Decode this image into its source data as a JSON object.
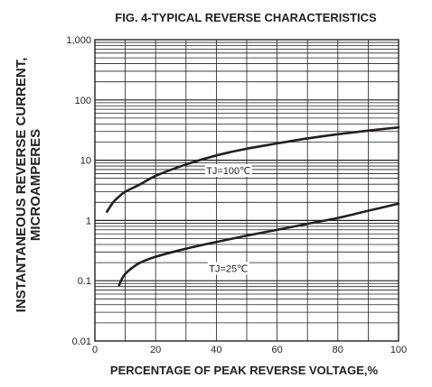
{
  "chart_data": {
    "type": "line",
    "title": "FIG. 4-TYPICAL REVERSE CHARACTERISTICS",
    "xlabel": "PERCENTAGE OF PEAK REVERSE VOLTAGE,%",
    "ylabel_line1": "INSTANTANEOUS REVERSE CURRENT,",
    "ylabel_line2": "MICROAMPERES",
    "xlim": [
      0,
      100
    ],
    "ylim": [
      0.01,
      1000
    ],
    "y_scale": "log",
    "grid": true,
    "x_ticks": [
      "0",
      "20",
      "40",
      "60",
      "80",
      "100"
    ],
    "x_tick_values": [
      0,
      20,
      40,
      60,
      80,
      100
    ],
    "y_ticks": [
      "0.01",
      "0.1",
      "1",
      "10",
      "100",
      "1,000"
    ],
    "y_tick_values": [
      0.01,
      0.1,
      1,
      10,
      100,
      1000
    ],
    "series": [
      {
        "name": "TJ=100℃",
        "x": [
          4,
          6,
          8,
          10,
          15,
          20,
          30,
          40,
          50,
          60,
          70,
          80,
          90,
          100
        ],
        "y": [
          1.4,
          2.0,
          2.5,
          3.0,
          4.0,
          5.5,
          8.5,
          12,
          15.5,
          19,
          23,
          27,
          31,
          35
        ]
      },
      {
        "name": "TJ=25℃",
        "x": [
          8,
          9,
          10,
          12,
          15,
          20,
          30,
          40,
          50,
          60,
          70,
          80,
          90,
          100
        ],
        "y": [
          0.085,
          0.11,
          0.13,
          0.16,
          0.2,
          0.25,
          0.34,
          0.44,
          0.56,
          0.7,
          0.88,
          1.1,
          1.45,
          1.9
        ]
      }
    ],
    "annotations": [
      {
        "text": "TJ=100℃",
        "series": 0
      },
      {
        "text": "TJ=25℃",
        "series": 1
      }
    ]
  },
  "colors": {
    "ink": "#231f20",
    "background": "#ffffff"
  }
}
